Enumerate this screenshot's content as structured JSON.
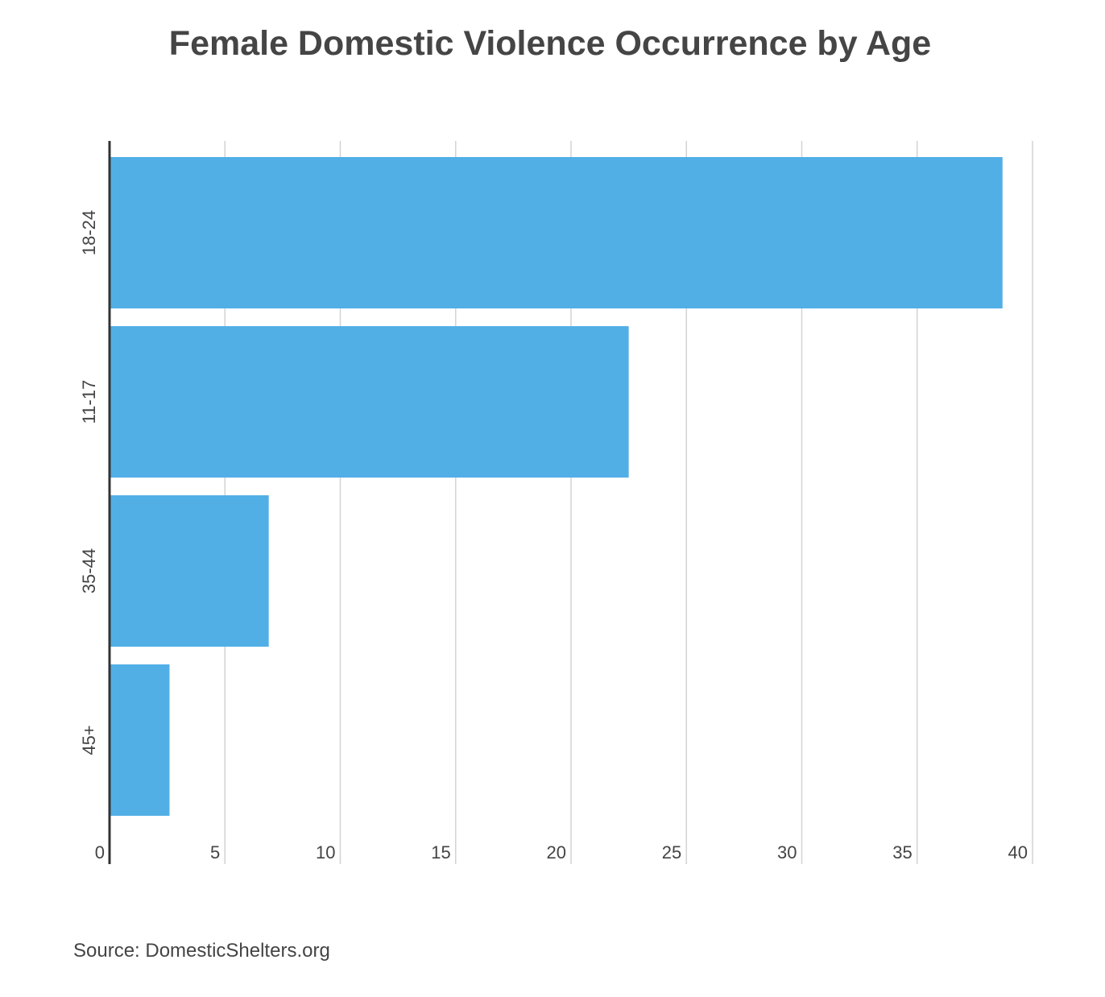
{
  "chart_data": {
    "type": "bar",
    "orientation": "horizontal",
    "title": "Female Domestic Violence Occurrence by Age",
    "categories": [
      "18-24",
      "11-17",
      "35-44",
      "45+"
    ],
    "values": [
      38.7,
      22.5,
      6.9,
      2.6
    ],
    "xlim": [
      0,
      40
    ],
    "x_ticks": [
      "0",
      "5",
      "10",
      "15",
      "20",
      "25",
      "30",
      "35",
      "40"
    ],
    "xlabel": "",
    "ylabel": "",
    "grid": "vertical",
    "legend": "none",
    "bar_color": "#52AFE6",
    "grid_color": "#D3D3D3",
    "axis_color": "#333333"
  },
  "source": "Source: DomesticShelters.org"
}
